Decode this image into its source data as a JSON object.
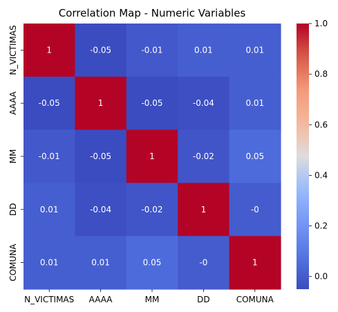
{
  "chart_data": {
    "type": "heatmap",
    "title": "Correlation Map - Numeric Variables",
    "xlabel": "",
    "ylabel": "",
    "x_categories": [
      "N_VICTIMAS",
      "AAAA",
      "MM",
      "DD",
      "COMUNA"
    ],
    "y_categories": [
      "N_VICTIMAS",
      "AAAA",
      "MM",
      "DD",
      "COMUNA"
    ],
    "values": [
      [
        1,
        -0.05,
        -0.01,
        0.01,
        0.01
      ],
      [
        -0.05,
        1,
        -0.05,
        -0.04,
        0.01
      ],
      [
        -0.01,
        -0.05,
        1,
        -0.02,
        0.05
      ],
      [
        0.01,
        -0.04,
        -0.02,
        1,
        -0.0
      ],
      [
        0.01,
        0.01,
        0.05,
        -0.0,
        1
      ]
    ],
    "cell_labels": [
      [
        "1",
        "-0.05",
        "-0.01",
        "0.01",
        "0.01"
      ],
      [
        "-0.05",
        "1",
        "-0.05",
        "-0.04",
        "0.01"
      ],
      [
        "-0.01",
        "-0.05",
        "1",
        "-0.02",
        "0.05"
      ],
      [
        "0.01",
        "-0.04",
        "-0.02",
        "1",
        "-0"
      ],
      [
        "0.01",
        "0.01",
        "0.05",
        "-0",
        "1"
      ]
    ],
    "colormap": "coolwarm",
    "vmin": -0.05,
    "vmax": 1.0,
    "colorbar": {
      "ticks": [
        0.0,
        0.2,
        0.4,
        0.6,
        0.8,
        1.0
      ],
      "tick_labels": [
        "0.0",
        "0.2",
        "0.4",
        "0.6",
        "0.8",
        "1.0"
      ],
      "placement": "right"
    },
    "grid": false,
    "legend": "none"
  }
}
